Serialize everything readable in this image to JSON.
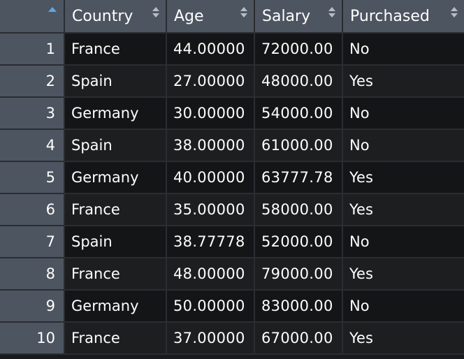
{
  "table": {
    "columns": [
      {
        "label": "Country"
      },
      {
        "label": "Age"
      },
      {
        "label": "Salary"
      },
      {
        "label": "Purchased"
      }
    ],
    "rows": [
      {
        "index": "1",
        "country": "France",
        "age": "44.00000",
        "salary": "72000.00",
        "purchased": "No"
      },
      {
        "index": "2",
        "country": "Spain",
        "age": "27.00000",
        "salary": "48000.00",
        "purchased": "Yes"
      },
      {
        "index": "3",
        "country": "Germany",
        "age": "30.00000",
        "salary": "54000.00",
        "purchased": "No"
      },
      {
        "index": "4",
        "country": "Spain",
        "age": "38.00000",
        "salary": "61000.00",
        "purchased": "No"
      },
      {
        "index": "5",
        "country": "Germany",
        "age": "40.00000",
        "salary": "63777.78",
        "purchased": "Yes"
      },
      {
        "index": "6",
        "country": "France",
        "age": "35.00000",
        "salary": "58000.00",
        "purchased": "Yes"
      },
      {
        "index": "7",
        "country": "Spain",
        "age": "38.77778",
        "salary": "52000.00",
        "purchased": "No"
      },
      {
        "index": "8",
        "country": "France",
        "age": "48.00000",
        "salary": "79000.00",
        "purchased": "Yes"
      },
      {
        "index": "9",
        "country": "Germany",
        "age": "50.00000",
        "salary": "83000.00",
        "purchased": "No"
      },
      {
        "index": "10",
        "country": "France",
        "age": "37.00000",
        "salary": "67000.00",
        "purchased": "Yes"
      }
    ]
  },
  "icons": {
    "index_sort": "sort-ascending-icon",
    "column_sort": "sort-icon"
  },
  "colors": {
    "header_bg": "#4d5560",
    "row_odd_bg": "#141516",
    "row_even_bg": "#1d1e20",
    "sort_accent": "#5aa7ea",
    "text": "#ffffff"
  }
}
